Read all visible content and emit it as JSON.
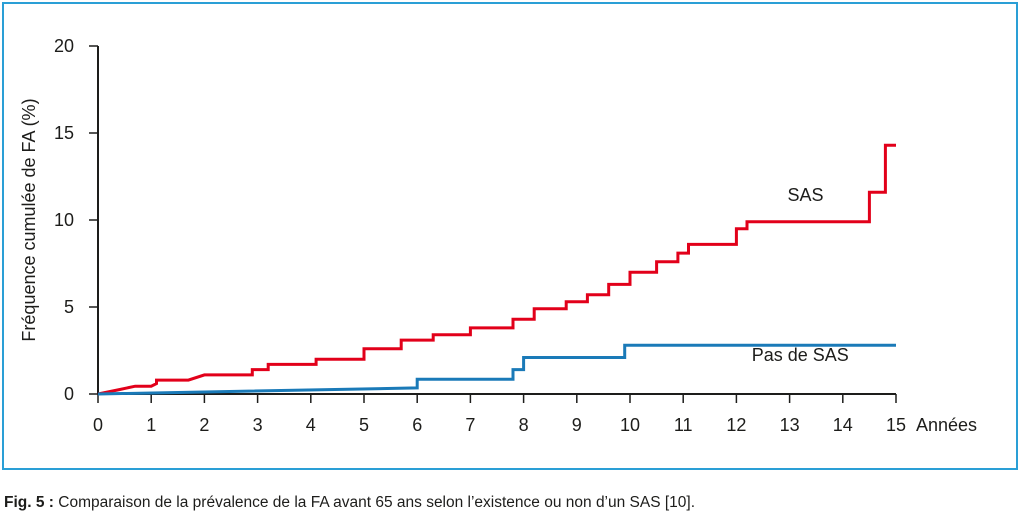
{
  "caption": {
    "prefix": "Fig. 5 :",
    "text": " Comparaison de la prévalence de la FA avant 65 ans selon l’existence ou non d’un SAS [10]."
  },
  "colors": {
    "frame": "#2a9fd6",
    "axis": "#1d1d1b"
  },
  "chart_data": {
    "type": "line",
    "step": true,
    "xlabel": "Années",
    "ylabel": "Fréquence cumulée de FA (%)",
    "xlim": [
      0,
      15
    ],
    "ylim": [
      0,
      20
    ],
    "xticks": [
      0,
      1,
      2,
      3,
      4,
      5,
      6,
      7,
      8,
      9,
      10,
      11,
      12,
      13,
      14,
      15
    ],
    "yticks": [
      0,
      5,
      10,
      15,
      20
    ],
    "grid": false,
    "legend": "inline labels",
    "series": [
      {
        "name": "SAS",
        "color": "#e2001a",
        "points": [
          [
            0,
            0
          ],
          [
            0.4,
            0.25
          ],
          [
            0.7,
            0.45
          ],
          [
            1.0,
            0.45
          ],
          [
            1.1,
            0.6
          ],
          [
            1.1,
            0.8
          ],
          [
            1.7,
            0.8
          ],
          [
            2.0,
            1.1
          ],
          [
            2.9,
            1.1
          ],
          [
            2.9,
            1.4
          ],
          [
            3.2,
            1.4
          ],
          [
            3.2,
            1.7
          ],
          [
            4.1,
            1.7
          ],
          [
            4.1,
            2.0
          ],
          [
            4.9,
            2.0
          ],
          [
            5.0,
            2.0
          ],
          [
            5.0,
            2.6
          ],
          [
            5.7,
            2.6
          ],
          [
            5.7,
            3.1
          ],
          [
            6.3,
            3.1
          ],
          [
            6.3,
            3.4
          ],
          [
            7.0,
            3.4
          ],
          [
            7.0,
            3.8
          ],
          [
            7.8,
            3.8
          ],
          [
            7.8,
            4.3
          ],
          [
            8.2,
            4.3
          ],
          [
            8.2,
            4.9
          ],
          [
            8.8,
            4.9
          ],
          [
            8.8,
            5.3
          ],
          [
            9.2,
            5.3
          ],
          [
            9.2,
            5.7
          ],
          [
            9.6,
            5.7
          ],
          [
            9.6,
            6.3
          ],
          [
            10.0,
            6.3
          ],
          [
            10.0,
            7.0
          ],
          [
            10.5,
            7.0
          ],
          [
            10.5,
            7.6
          ],
          [
            10.9,
            7.6
          ],
          [
            10.9,
            8.1
          ],
          [
            11.1,
            8.1
          ],
          [
            11.1,
            8.6
          ],
          [
            12.0,
            8.6
          ],
          [
            12.0,
            9.5
          ],
          [
            12.2,
            9.5
          ],
          [
            12.2,
            9.9
          ],
          [
            14.5,
            9.9
          ],
          [
            14.5,
            11.6
          ],
          [
            14.8,
            11.6
          ],
          [
            14.8,
            14.3
          ],
          [
            15.0,
            14.3
          ]
        ]
      },
      {
        "name": "Pas de SAS",
        "color": "#1a7ab8",
        "points": [
          [
            0,
            0
          ],
          [
            6.0,
            0.35
          ],
          [
            6.0,
            0.85
          ],
          [
            7.8,
            0.85
          ],
          [
            7.8,
            1.4
          ],
          [
            8.0,
            1.4
          ],
          [
            8.0,
            2.1
          ],
          [
            9.9,
            2.1
          ],
          [
            9.9,
            2.8
          ],
          [
            15.0,
            2.8
          ]
        ]
      }
    ],
    "series_labels": [
      {
        "series": "SAS",
        "text": "SAS",
        "x": 13.3,
        "y": 11.1
      },
      {
        "series": "Pas de SAS",
        "text": "Pas de SAS",
        "x": 13.2,
        "y": 1.9
      }
    ]
  }
}
